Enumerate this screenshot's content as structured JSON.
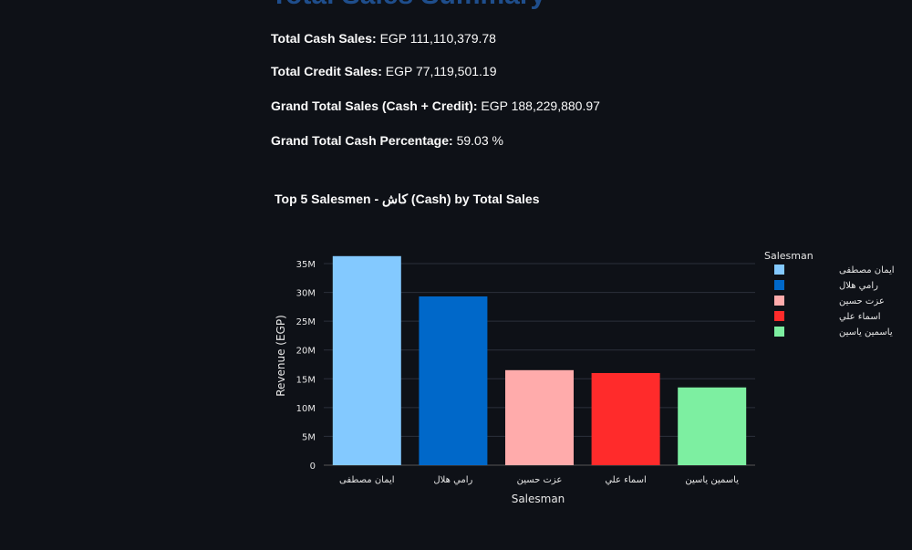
{
  "page": {
    "title": "Total Sales Summary"
  },
  "summary": [
    {
      "label": "Total Cash Sales:",
      "value": "EGP 111,110,379.78"
    },
    {
      "label": "Total Credit Sales:",
      "value": "EGP 77,119,501.19"
    },
    {
      "label": "Grand Total Sales (Cash + Credit):",
      "value": "EGP 188,229,880.97"
    },
    {
      "label": "Grand Total Cash Percentage:",
      "value": "59.03 %"
    }
  ],
  "chart_data": {
    "type": "bar",
    "title": "Top 5 Salesmen - كاش (Cash) by Total Sales",
    "xlabel": "Salesman",
    "ylabel": "Revenue (EGP)",
    "categories": [
      "ايمان مصطفى",
      "رامي هلال",
      "عزت حسين",
      "اسماء علي",
      "ياسمين ياسين"
    ],
    "values": [
      36300000,
      29300000,
      16500000,
      16000000,
      13500000
    ],
    "colors": [
      "#83c9ff",
      "#0068c9",
      "#ffabab",
      "#ff2b2b",
      "#7defa1"
    ],
    "ylim": [
      0,
      37000000
    ],
    "yticks": [
      0,
      5000000,
      10000000,
      15000000,
      20000000,
      25000000,
      30000000,
      35000000
    ],
    "ytick_labels": [
      "0",
      "5M",
      "10M",
      "15M",
      "20M",
      "25M",
      "30M",
      "35M"
    ],
    "grid": true,
    "legend": {
      "title": "Salesman",
      "placement": "right"
    }
  }
}
